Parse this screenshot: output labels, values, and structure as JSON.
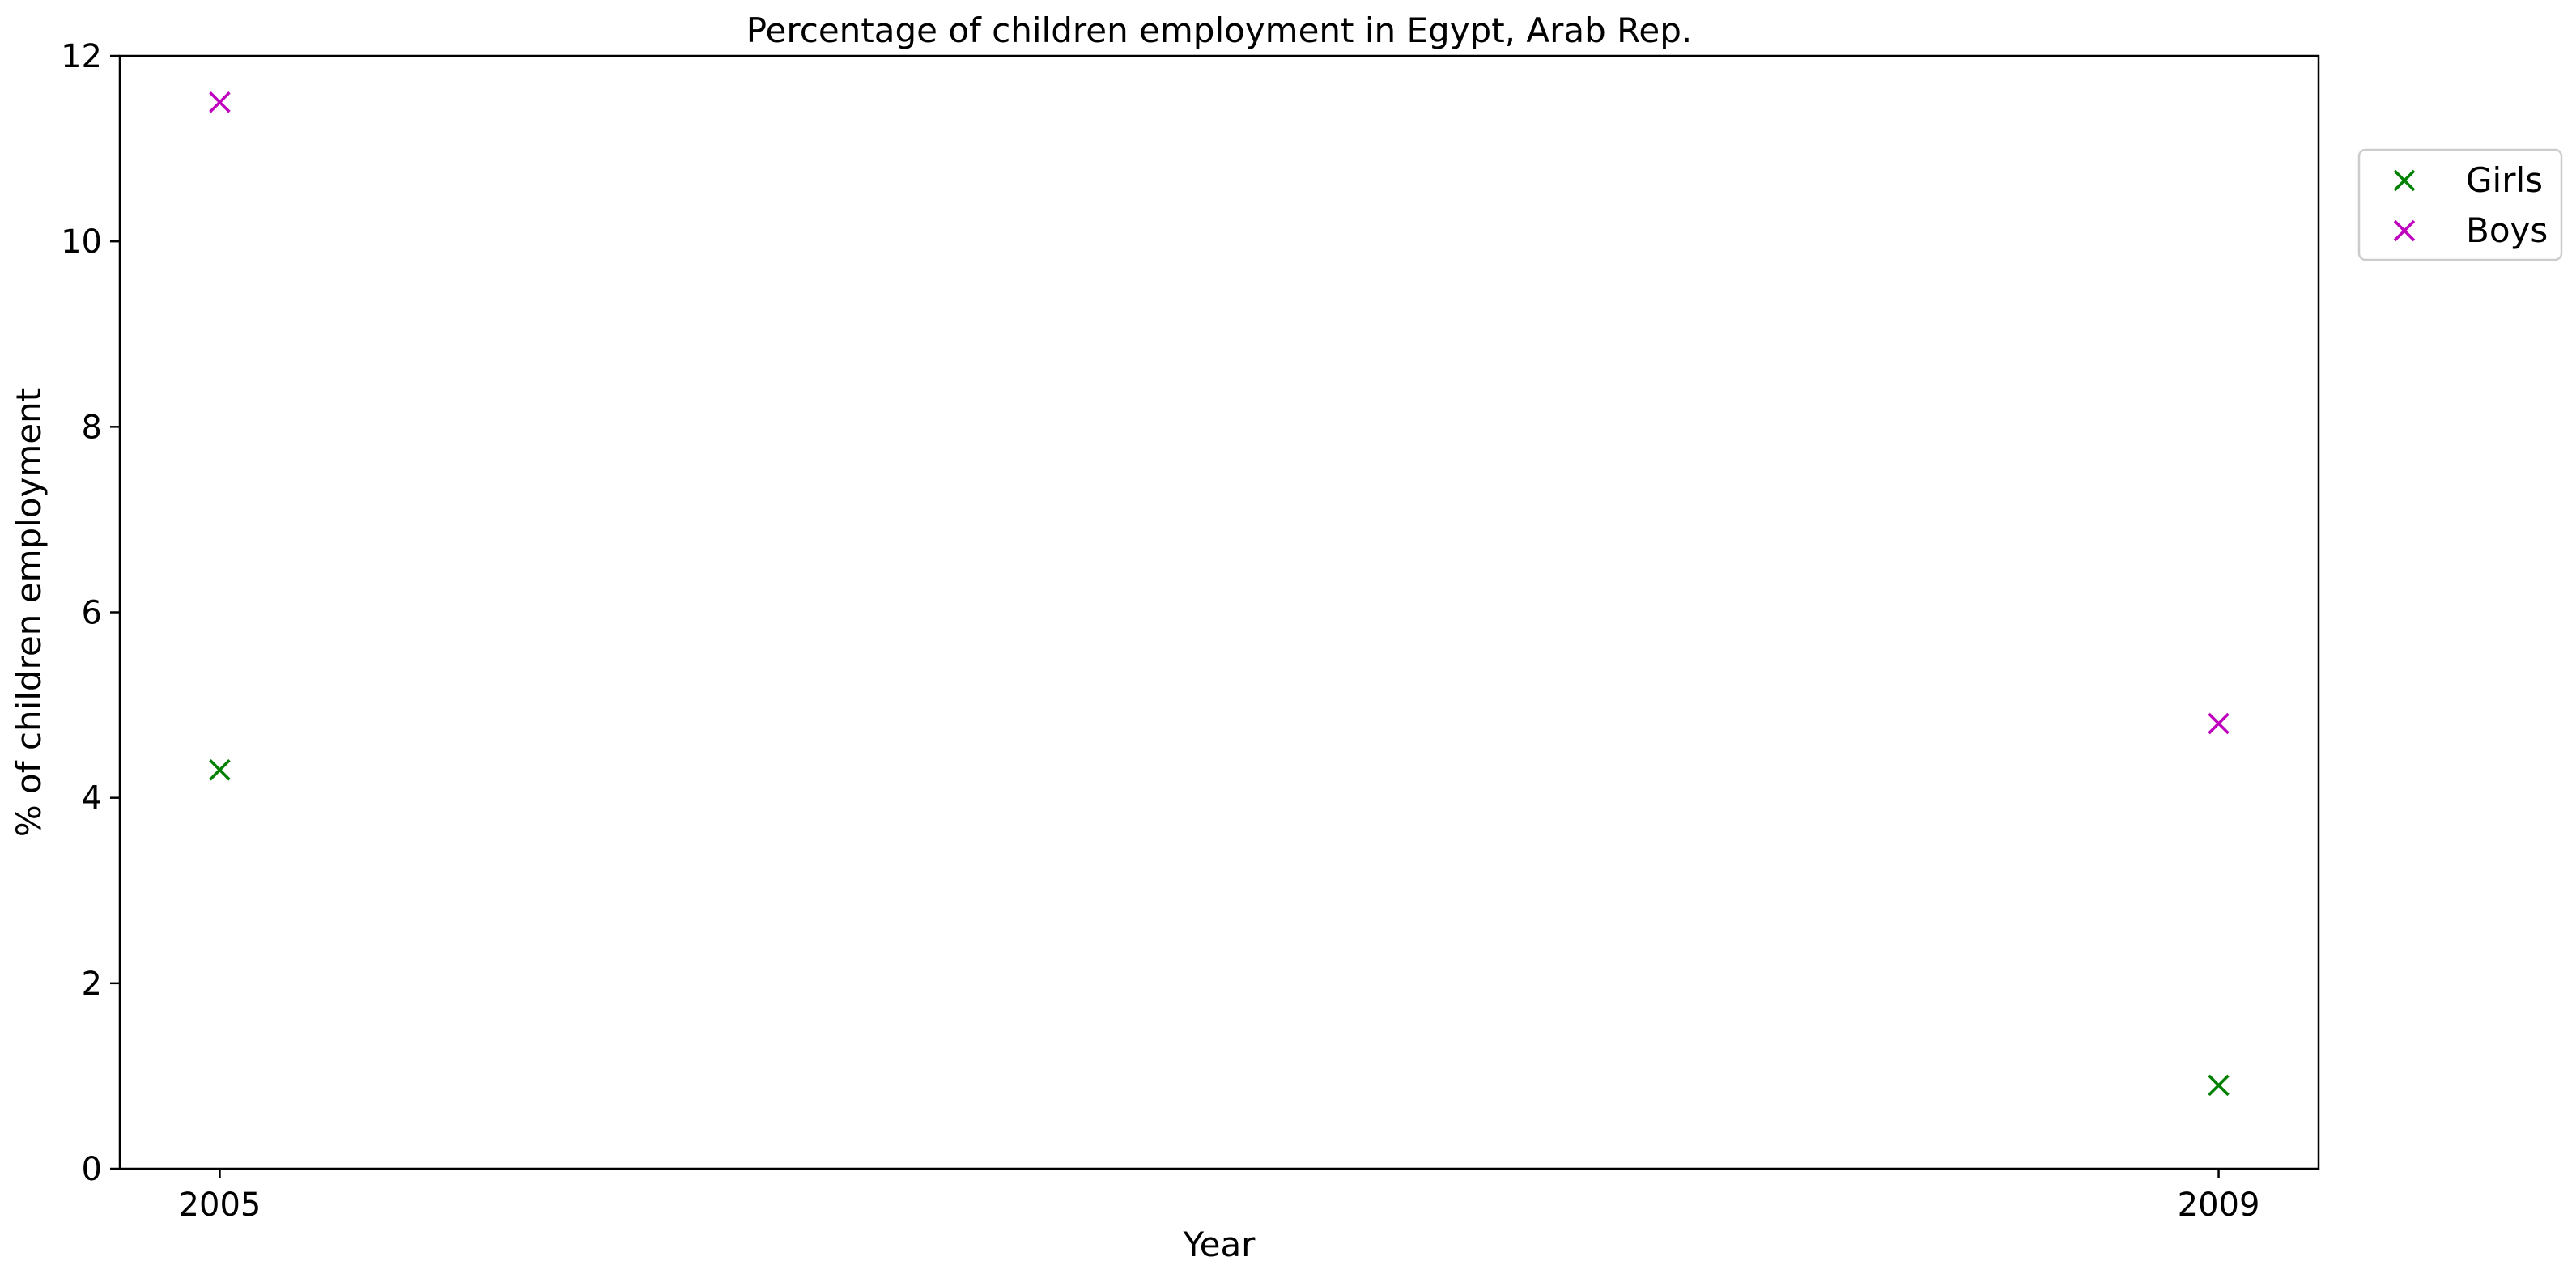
{
  "chart_data": {
    "type": "scatter",
    "title": "Percentage of children employment in Egypt, Arab Rep.",
    "xlabel": "Year",
    "ylabel": "% of children employment",
    "x": [
      2005,
      2009
    ],
    "xticks": [
      2005,
      2009
    ],
    "xlim": [
      2004.8,
      2009.2
    ],
    "ylim": [
      0,
      12
    ],
    "yticks": [
      0,
      2,
      4,
      6,
      8,
      10,
      12
    ],
    "grid": false,
    "legend": "upper right, outside plot",
    "marker": "x",
    "series": [
      {
        "name": "Girls",
        "color": "#008000",
        "values": [
          4.3,
          0.9
        ]
      },
      {
        "name": "Boys",
        "color": "#bf00bf",
        "values": [
          11.5,
          4.8
        ]
      }
    ]
  }
}
